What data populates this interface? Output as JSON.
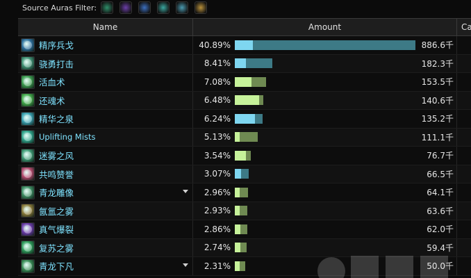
{
  "filter": {
    "label": "Source Auras Filter:",
    "auras": [
      {
        "icon": "leaf-aura-icon",
        "color": "#2f8f6a"
      },
      {
        "icon": "purple-swirl-aura-icon",
        "color": "#6b3fa8"
      },
      {
        "icon": "blue-orb-aura-icon",
        "color": "#3c6fbf"
      },
      {
        "icon": "teal-ring-aura-icon",
        "color": "#3aa7a0"
      },
      {
        "icon": "teal-ring-aura-icon-2",
        "color": "#4a9ab0"
      },
      {
        "icon": "golden-orb-aura-icon",
        "color": "#b8903a"
      }
    ]
  },
  "table": {
    "headers": {
      "name": "Name",
      "amount": "Amount",
      "cast": "Ca"
    },
    "rows": [
      {
        "name": "精序兵戈",
        "pct": "40.89%",
        "amount": "886.6千",
        "a": 0.1,
        "b": 1.0,
        "colorA": "#7ed6f0",
        "colorB": "#3d7a86",
        "icon": "wind-spiral-icon",
        "iconColor": "#2e6f9c",
        "dropdown": false
      },
      {
        "name": "骁勇打击",
        "pct": "8.41%",
        "amount": "182.3千",
        "a": 0.06,
        "b": 0.206,
        "colorA": "#7ed6f0",
        "colorB": "#3d7a86",
        "icon": "tiger-strike-icon",
        "iconColor": "#3f8f72",
        "dropdown": false
      },
      {
        "name": "活血术",
        "pct": "7.08%",
        "amount": "153.5千",
        "a": 0.094,
        "b": 0.173,
        "colorA": "#c6f29a",
        "colorB": "#6f8a52",
        "icon": "vivify-icon",
        "iconColor": "#3c9a4e",
        "dropdown": false
      },
      {
        "name": "还魂术",
        "pct": "6.48%",
        "amount": "140.6千",
        "a": 0.136,
        "b": 0.158,
        "colorA": "#c6f29a",
        "colorB": "#6f8a52",
        "icon": "revival-icon",
        "iconColor": "#43a84a",
        "dropdown": false
      },
      {
        "name": "精华之泉",
        "pct": "6.24%",
        "amount": "135.2千",
        "a": 0.11,
        "b": 0.153,
        "colorA": "#7ed6f0",
        "colorB": "#3d7a86",
        "icon": "essence-font-icon",
        "iconColor": "#3aa0b0",
        "dropdown": false
      },
      {
        "name": "Uplifting Mists",
        "pct": "5.13%",
        "amount": "111.1千",
        "a": 0.028,
        "b": 0.125,
        "colorA": "#c6f29a",
        "colorB": "#6f8a52",
        "icon": "uplifting-mists-icon",
        "iconColor": "#2fa38a",
        "dropdown": false
      },
      {
        "name": "迷雾之风",
        "pct": "3.54%",
        "amount": "76.7千",
        "a": 0.06,
        "b": 0.087,
        "colorA": "#c6f29a",
        "colorB": "#6f8a52",
        "icon": "mist-wind-icon",
        "iconColor": "#3f9a74",
        "dropdown": false
      },
      {
        "name": "共鸣赞誉",
        "pct": "3.07%",
        "amount": "66.5千",
        "a": 0.035,
        "b": 0.075,
        "colorA": "#7ed6f0",
        "colorB": "#3d7a86",
        "icon": "resonance-icon",
        "iconColor": "#b54a6e",
        "dropdown": false
      },
      {
        "name": "青龙雕像",
        "pct": "2.96%",
        "amount": "64.1千",
        "a": 0.025,
        "b": 0.072,
        "colorA": "#c6f29a",
        "colorB": "#6f8a52",
        "icon": "jade-serpent-statue-icon",
        "iconColor": "#3d8c62",
        "dropdown": true
      },
      {
        "name": "氤氲之雾",
        "pct": "2.93%",
        "amount": "63.6千",
        "a": 0.025,
        "b": 0.071,
        "colorA": "#c6f29a",
        "colorB": "#6f8a52",
        "icon": "mist-swirl-icon",
        "iconColor": "#8a7a3a",
        "dropdown": false
      },
      {
        "name": "真气爆裂",
        "pct": "2.86%",
        "amount": "62.0千",
        "a": 0.03,
        "b": 0.07,
        "colorA": "#c6f29a",
        "colorB": "#6f8a52",
        "icon": "chi-burst-icon",
        "iconColor": "#6a3aa8",
        "dropdown": false
      },
      {
        "name": "复苏之雾",
        "pct": "2.74%",
        "amount": "59.4千",
        "a": 0.03,
        "b": 0.067,
        "colorA": "#c6f29a",
        "colorB": "#6f8a52",
        "icon": "renewing-mist-icon",
        "iconColor": "#2e9a5a",
        "dropdown": false
      },
      {
        "name": "青龙下凡",
        "pct": "2.31%",
        "amount": "50.0千",
        "a": 0.028,
        "b": 0.056,
        "colorA": "#c6f29a",
        "colorB": "#6f8a52",
        "icon": "jade-serpent-descend-icon",
        "iconColor": "#3a8c56",
        "dropdown": true
      }
    ]
  }
}
